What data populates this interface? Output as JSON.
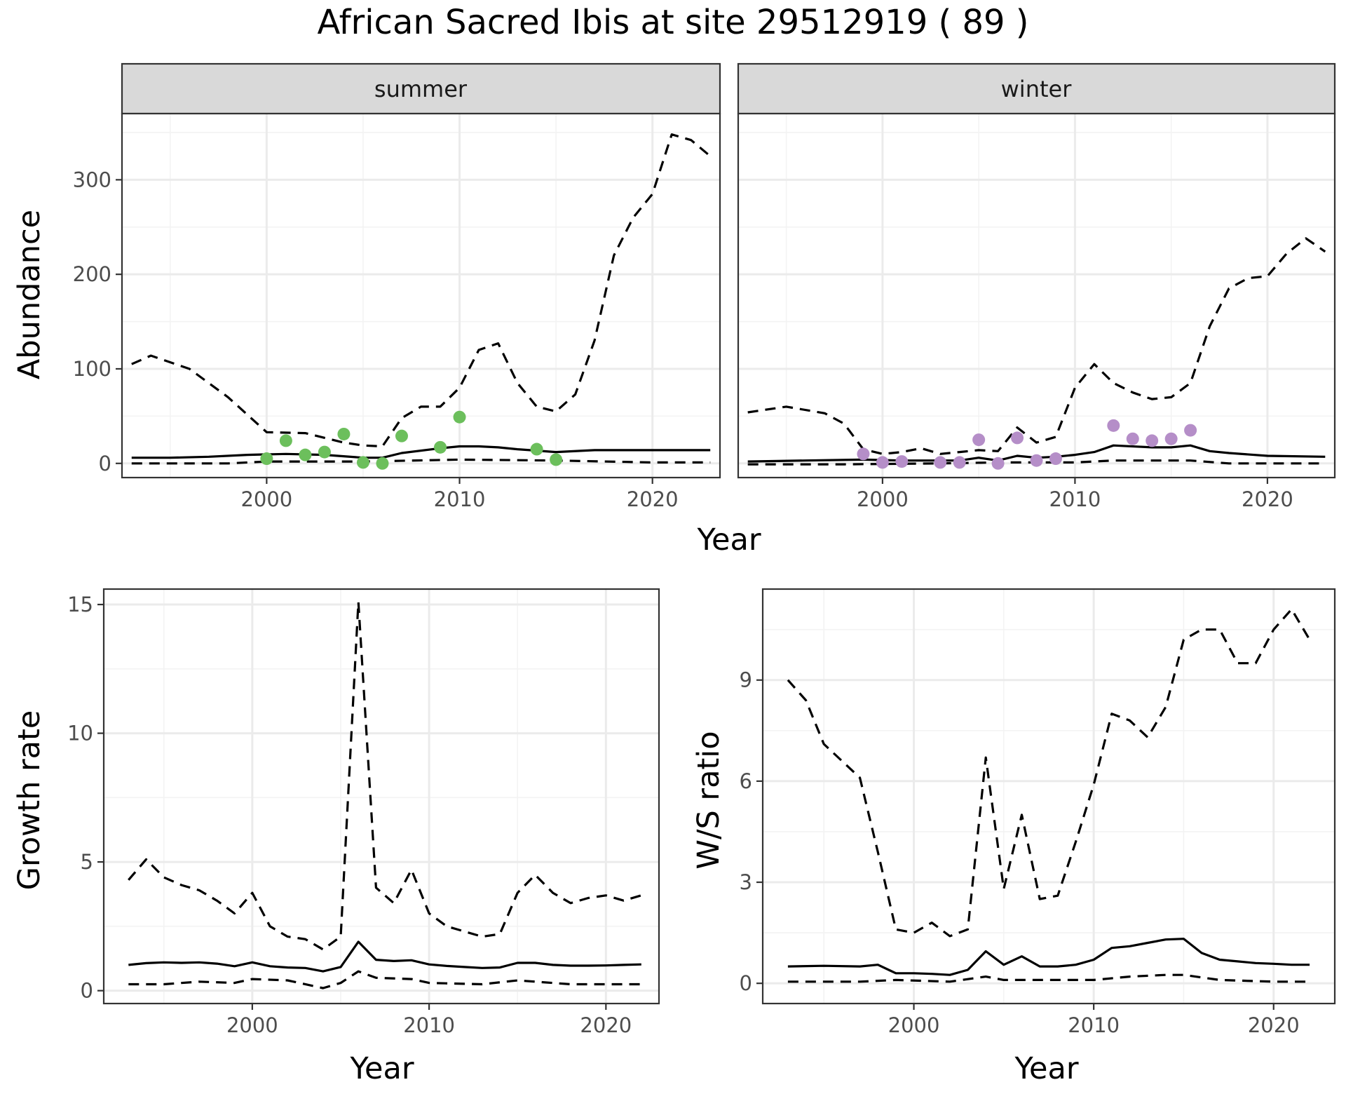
{
  "figure_title": "African Sacred Ibis at site 29512919 ( 89 )",
  "colors": {
    "summer_points": "#6cbf5c",
    "winter_points": "#b58ec8",
    "lines": "#000000",
    "strip": "#d9d9d9"
  },
  "chart_data": [
    {
      "type": "line",
      "facet": "summer",
      "xlabel": "Year",
      "ylabel": "Abundance",
      "xlim": [
        1992.5,
        2023.5
      ],
      "ylim": [
        -15,
        370
      ],
      "xticks": [
        2000,
        2010,
        2020
      ],
      "yticks": [
        0,
        100,
        200,
        300
      ],
      "grid": true,
      "series": [
        {
          "style": "solid",
          "x": [
            1993,
            1995,
            1997,
            1999,
            2001,
            2003,
            2005,
            2006,
            2007,
            2009,
            2010,
            2011,
            2012,
            2013,
            2015,
            2017,
            2019,
            2021,
            2023
          ],
          "y": [
            6,
            6,
            7,
            9,
            10,
            9,
            6,
            6,
            11,
            16,
            18,
            18,
            17,
            15,
            12,
            14,
            14,
            14,
            14
          ]
        },
        {
          "style": "dashed",
          "x": [
            1993,
            1994,
            1996,
            1998,
            2000,
            2002,
            2004,
            2005,
            2006,
            2007,
            2008,
            2009,
            2010,
            2011,
            2012,
            2013,
            2014,
            2015,
            2016,
            2017,
            2018,
            2019,
            2020,
            2021,
            2022,
            2023
          ],
          "y": [
            105,
            114,
            100,
            70,
            33,
            32,
            22,
            19,
            18,
            48,
            60,
            60,
            80,
            120,
            127,
            85,
            60,
            55,
            73,
            130,
            220,
            260,
            285,
            348,
            342,
            325
          ]
        },
        {
          "style": "dashed",
          "x": [
            1993,
            1998,
            2000,
            2005,
            2010,
            2015,
            2020,
            2023
          ],
          "y": [
            0,
            0,
            2,
            2,
            4,
            3,
            1,
            1
          ]
        },
        {
          "style": "points",
          "color": "#6cbf5c",
          "x": [
            2000,
            2001,
            2002,
            2003,
            2004,
            2005,
            2006,
            2007,
            2009,
            2010,
            2014,
            2015
          ],
          "y": [
            5,
            24,
            9,
            12,
            31,
            1,
            0,
            29,
            17,
            49,
            15,
            4
          ]
        }
      ]
    },
    {
      "type": "line",
      "facet": "winter",
      "xlabel": "Year",
      "ylabel": "Abundance",
      "xlim": [
        1992.5,
        2023.5
      ],
      "ylim": [
        -15,
        370
      ],
      "xticks": [
        2000,
        2010,
        2020
      ],
      "yticks": [
        0,
        100,
        200,
        300
      ],
      "grid": true,
      "series": [
        {
          "style": "solid",
          "x": [
            1993,
            1996,
            1999,
            2001,
            2003,
            2004,
            2005,
            2006,
            2007,
            2008,
            2009,
            2010,
            2011,
            2012,
            2014,
            2015,
            2016,
            2017,
            2018,
            2020,
            2023
          ],
          "y": [
            2,
            3,
            4,
            3,
            3,
            3,
            6,
            3,
            8,
            6,
            7,
            9,
            12,
            19,
            17,
            17,
            19,
            13,
            11,
            8,
            7
          ]
        },
        {
          "style": "dashed",
          "x": [
            1993,
            1995,
            1997,
            1998,
            1999,
            2000,
            2001,
            2002,
            2003,
            2004,
            2005,
            2006,
            2007,
            2008,
            2009,
            2010,
            2011,
            2012,
            2013,
            2014,
            2015,
            2016,
            2017,
            2018,
            2019,
            2020,
            2021,
            2022,
            2023
          ],
          "y": [
            54,
            60,
            53,
            42,
            15,
            10,
            12,
            16,
            10,
            12,
            14,
            13,
            38,
            22,
            28,
            80,
            105,
            85,
            75,
            68,
            70,
            85,
            145,
            185,
            196,
            198,
            222,
            238,
            224
          ]
        },
        {
          "style": "dashed",
          "x": [
            1993,
            1998,
            2003,
            2006,
            2010,
            2012,
            2016,
            2018,
            2023
          ],
          "y": [
            -1,
            -1,
            0,
            1,
            1,
            3,
            3,
            0,
            0
          ]
        },
        {
          "style": "points",
          "color": "#b58ec8",
          "x": [
            1999,
            2000,
            2001,
            2003,
            2004,
            2005,
            2006,
            2007,
            2008,
            2009,
            2012,
            2013,
            2014,
            2015,
            2016
          ],
          "y": [
            10,
            1,
            2,
            1,
            1,
            25,
            0,
            27,
            3,
            5,
            40,
            26,
            24,
            26,
            35
          ]
        }
      ]
    },
    {
      "type": "line",
      "xlabel": "Year",
      "ylabel": "Growth rate",
      "xlim": [
        1991.6,
        2023.0
      ],
      "ylim": [
        -0.5,
        15.6
      ],
      "xticks": [
        2000,
        2010,
        2020
      ],
      "yticks": [
        0,
        5,
        10,
        15
      ],
      "grid": true,
      "series": [
        {
          "style": "solid",
          "x": [
            1993,
            1994,
            1995,
            1996,
            1997,
            1998,
            1999,
            2000,
            2001,
            2002,
            2003,
            2004,
            2005,
            2006,
            2007,
            2008,
            2009,
            2010,
            2011,
            2012,
            2013,
            2014,
            2015,
            2016,
            2017,
            2018,
            2019,
            2020,
            2021,
            2022
          ],
          "y": [
            1.0,
            1.07,
            1.1,
            1.08,
            1.1,
            1.05,
            0.95,
            1.1,
            0.95,
            0.9,
            0.88,
            0.75,
            0.92,
            1.9,
            1.2,
            1.15,
            1.18,
            1.02,
            0.96,
            0.92,
            0.88,
            0.9,
            1.08,
            1.08,
            1.0,
            0.97,
            0.97,
            0.98,
            1.0,
            1.02
          ]
        },
        {
          "style": "dashed",
          "x": [
            1993,
            1994,
            1995,
            1996,
            1997,
            1998,
            1999,
            2000,
            2001,
            2002,
            2003,
            2004,
            2005,
            2006,
            2007,
            2008,
            2009,
            2010,
            2011,
            2012,
            2013,
            2014,
            2015,
            2016,
            2017,
            2018,
            2019,
            2020,
            2021,
            2022
          ],
          "y": [
            4.3,
            5.1,
            4.4,
            4.1,
            3.9,
            3.5,
            3.0,
            3.8,
            2.5,
            2.1,
            2.0,
            1.6,
            2.1,
            15.1,
            4.0,
            3.4,
            4.7,
            3.0,
            2.5,
            2.3,
            2.1,
            2.2,
            3.8,
            4.5,
            3.8,
            3.4,
            3.6,
            3.7,
            3.5,
            3.7
          ]
        },
        {
          "style": "dashed",
          "x": [
            1993,
            1995,
            1997,
            1999,
            2000,
            2002,
            2004,
            2005,
            2006,
            2007,
            2009,
            2010,
            2013,
            2015,
            2018,
            2022
          ],
          "y": [
            0.25,
            0.25,
            0.35,
            0.3,
            0.45,
            0.4,
            0.1,
            0.3,
            0.75,
            0.5,
            0.45,
            0.3,
            0.25,
            0.4,
            0.25,
            0.25
          ]
        }
      ]
    },
    {
      "type": "line",
      "xlabel": "Year",
      "ylabel": "W/S ratio",
      "xlim": [
        1991.6,
        2023.4
      ],
      "ylim": [
        -0.6,
        11.7
      ],
      "xticks": [
        2000,
        2010,
        2020
      ],
      "yticks": [
        0,
        3,
        6,
        9
      ],
      "grid": true,
      "series": [
        {
          "style": "solid",
          "x": [
            1993,
            1995,
            1997,
            1998,
            1999,
            2000,
            2001,
            2002,
            2003,
            2004,
            2005,
            2006,
            2007,
            2008,
            2009,
            2010,
            2011,
            2012,
            2013,
            2014,
            2015,
            2016,
            2017,
            2018,
            2019,
            2020,
            2021,
            2022
          ],
          "y": [
            0.5,
            0.52,
            0.5,
            0.55,
            0.3,
            0.3,
            0.28,
            0.25,
            0.4,
            0.95,
            0.55,
            0.8,
            0.5,
            0.5,
            0.55,
            0.7,
            1.05,
            1.1,
            1.2,
            1.3,
            1.32,
            0.9,
            0.7,
            0.65,
            0.6,
            0.58,
            0.55,
            0.55
          ]
        },
        {
          "style": "dashed",
          "x": [
            1993,
            1994,
            1995,
            1996,
            1997,
            1998,
            1999,
            2000,
            2001,
            2002,
            2003,
            2004,
            2005,
            2006,
            2007,
            2008,
            2009,
            2010,
            2011,
            2012,
            2013,
            2014,
            2015,
            2016,
            2017,
            2018,
            2019,
            2020,
            2021,
            2022
          ],
          "y": [
            9.0,
            8.4,
            7.1,
            6.6,
            6.1,
            3.9,
            1.6,
            1.5,
            1.8,
            1.4,
            1.6,
            6.7,
            2.8,
            5.0,
            2.5,
            2.6,
            4.2,
            5.9,
            8.0,
            7.8,
            7.3,
            8.2,
            10.2,
            10.5,
            10.5,
            9.5,
            9.5,
            10.5,
            11.1,
            10.2
          ]
        },
        {
          "style": "dashed",
          "x": [
            1993,
            1997,
            1999,
            2002,
            2004,
            2005,
            2007,
            2010,
            2012,
            2014,
            2015,
            2017,
            2020,
            2022
          ],
          "y": [
            0.05,
            0.05,
            0.1,
            0.05,
            0.2,
            0.1,
            0.1,
            0.1,
            0.2,
            0.25,
            0.25,
            0.1,
            0.05,
            0.05
          ]
        }
      ]
    }
  ]
}
